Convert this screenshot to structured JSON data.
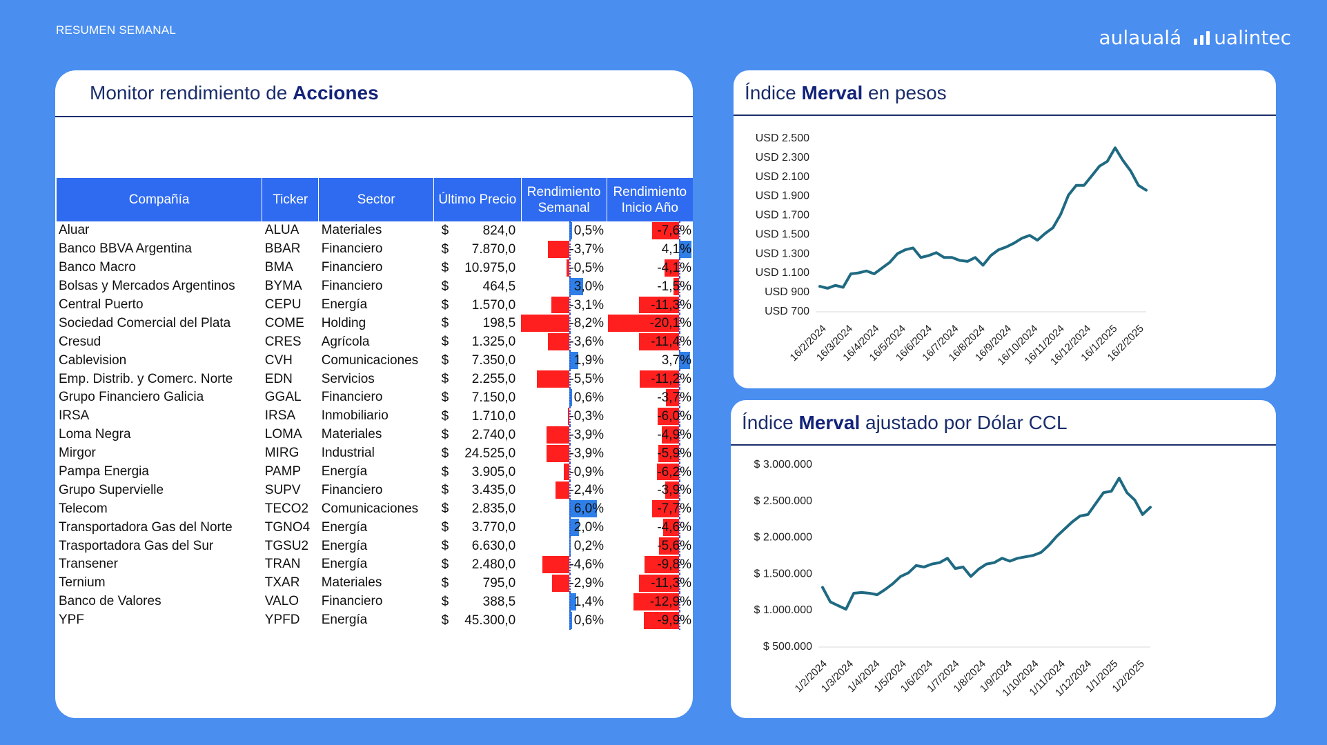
{
  "header": {
    "label": "RESUMEN SEMANAL",
    "brand_left": "aulaualá",
    "brand_right": "ualintec"
  },
  "colors": {
    "background": "#4a8ef0",
    "header_blue": "#2f6bf0",
    "negative": "#ff1f1f",
    "positive": "#2f7fe8",
    "line": "#1f6a82",
    "title": "#1a2d6b"
  },
  "monitor": {
    "title_prefix": "Monitor rendimiento de ",
    "title_bold": "Acciones",
    "columns": {
      "company": "Compañía",
      "ticker": "Ticker",
      "sector": "Sector",
      "price": "Último Precio",
      "weekly_1": "Rendimiento",
      "weekly_2": "Semanal",
      "ytd_1": "Rendimiento",
      "ytd_2": "Inicio Año"
    },
    "currency": "$",
    "rows": [
      {
        "company": "Aluar",
        "ticker": "ALUA",
        "sector": "Materiales",
        "price": "824,0",
        "weekly": 0.5,
        "weekly_label": "0,5%",
        "ytd": -7.6,
        "ytd_label": "-7,6%"
      },
      {
        "company": "Banco BBVA Argentina",
        "ticker": "BBAR",
        "sector": "Financiero",
        "price": "7.870,0",
        "weekly": -3.7,
        "weekly_label": "-3,7%",
        "ytd": 4.1,
        "ytd_label": "4,1%"
      },
      {
        "company": "Banco Macro",
        "ticker": "BMA",
        "sector": "Financiero",
        "price": "10.975,0",
        "weekly": -0.5,
        "weekly_label": "-0,5%",
        "ytd": -4.1,
        "ytd_label": "-4,1%"
      },
      {
        "company": "Bolsas y Mercados Argentinos",
        "ticker": "BYMA",
        "sector": "Financiero",
        "price": "464,5",
        "weekly": 3.0,
        "weekly_label": "3,0%",
        "ytd": -1.5,
        "ytd_label": "-1,5%"
      },
      {
        "company": "Central Puerto",
        "ticker": "CEPU",
        "sector": "Energía",
        "price": "1.570,0",
        "weekly": -3.1,
        "weekly_label": "-3,1%",
        "ytd": -11.3,
        "ytd_label": "-11,3%"
      },
      {
        "company": "Sociedad Comercial del Plata",
        "ticker": "COME",
        "sector": "Holding",
        "price": "198,5",
        "weekly": -8.2,
        "weekly_label": "-8,2%",
        "ytd": -20.1,
        "ytd_label": "-20,1%"
      },
      {
        "company": "Cresud",
        "ticker": "CRES",
        "sector": "Agrícola",
        "price": "1.325,0",
        "weekly": -3.6,
        "weekly_label": "-3,6%",
        "ytd": -11.4,
        "ytd_label": "-11,4%"
      },
      {
        "company": "Cablevision",
        "ticker": "CVH",
        "sector": "Comunicaciones",
        "price": "7.350,0",
        "weekly": 1.9,
        "weekly_label": "1,9%",
        "ytd": 3.7,
        "ytd_label": "3,7%"
      },
      {
        "company": "Emp. Distrib. y Comerc. Norte",
        "ticker": "EDN",
        "sector": "Servicios",
        "price": "2.255,0",
        "weekly": -5.5,
        "weekly_label": "-5,5%",
        "ytd": -11.2,
        "ytd_label": "-11,2%"
      },
      {
        "company": "Grupo Financiero Galicia",
        "ticker": "GGAL",
        "sector": "Financiero",
        "price": "7.150,0",
        "weekly": 0.6,
        "weekly_label": "0,6%",
        "ytd": -3.7,
        "ytd_label": "-3,7%"
      },
      {
        "company": "IRSA",
        "ticker": "IRSA",
        "sector": "Inmobiliario",
        "price": "1.710,0",
        "weekly": -0.3,
        "weekly_label": "-0,3%",
        "ytd": -6.0,
        "ytd_label": "-6,0%"
      },
      {
        "company": "Loma Negra",
        "ticker": "LOMA",
        "sector": "Materiales",
        "price": "2.740,0",
        "weekly": -3.9,
        "weekly_label": "-3,9%",
        "ytd": -4.9,
        "ytd_label": "-4,9%"
      },
      {
        "company": "Mirgor",
        "ticker": "MIRG",
        "sector": "Industrial",
        "price": "24.525,0",
        "weekly": -3.9,
        "weekly_label": "-3,9%",
        "ytd": -5.9,
        "ytd_label": "-5,9%"
      },
      {
        "company": "Pampa Energia",
        "ticker": "PAMP",
        "sector": "Energía",
        "price": "3.905,0",
        "weekly": -0.9,
        "weekly_label": "-0,9%",
        "ytd": -6.2,
        "ytd_label": "-6,2%"
      },
      {
        "company": "Grupo Supervielle",
        "ticker": "SUPV",
        "sector": "Financiero",
        "price": "3.435,0",
        "weekly": -2.4,
        "weekly_label": "-2,4%",
        "ytd": -3.9,
        "ytd_label": "-3,9%"
      },
      {
        "company": "Telecom",
        "ticker": "TECO2",
        "sector": "Comunicaciones",
        "price": "2.835,0",
        "weekly": 6.0,
        "weekly_label": "6,0%",
        "ytd": -7.7,
        "ytd_label": "-7,7%"
      },
      {
        "company": "Transportadora Gas del Norte",
        "ticker": "TGNO4",
        "sector": "Energía",
        "price": "3.770,0",
        "weekly": 2.0,
        "weekly_label": "2,0%",
        "ytd": -4.6,
        "ytd_label": "-4,6%"
      },
      {
        "company": "Trasportadora Gas del Sur",
        "ticker": "TGSU2",
        "sector": "Energía",
        "price": "6.630,0",
        "weekly": 0.2,
        "weekly_label": "0,2%",
        "ytd": -5.6,
        "ytd_label": "-5,6%"
      },
      {
        "company": "Transener",
        "ticker": "TRAN",
        "sector": "Energía",
        "price": "2.480,0",
        "weekly": -4.6,
        "weekly_label": "-4,6%",
        "ytd": -9.8,
        "ytd_label": "-9,8%"
      },
      {
        "company": "Ternium",
        "ticker": "TXAR",
        "sector": "Materiales",
        "price": "795,0",
        "weekly": -2.9,
        "weekly_label": "-2,9%",
        "ytd": -11.3,
        "ytd_label": "-11,3%"
      },
      {
        "company": "Banco de Valores",
        "ticker": "VALO",
        "sector": "Financiero",
        "price": "388,5",
        "weekly": 1.4,
        "weekly_label": "1,4%",
        "ytd": -12.9,
        "ytd_label": "-12,9%"
      },
      {
        "company": "YPF",
        "ticker": "YPFD",
        "sector": "Energía",
        "price": "45.300,0",
        "weekly": 0.6,
        "weekly_label": "0,6%",
        "ytd": -9.9,
        "ytd_label": "-9,9%"
      }
    ]
  },
  "merval_pesos": {
    "title_prefix": "Índice ",
    "title_bold": "Merval",
    "title_suffix": " en pesos"
  },
  "merval_ccl": {
    "title_prefix": "Índice ",
    "title_bold": "Merval",
    "title_suffix": " ajustado por Dólar CCL"
  },
  "chart_data": [
    {
      "id": "merval_pesos",
      "type": "line",
      "title": "Índice Merval en pesos",
      "ylim": [
        700,
        2500
      ],
      "yticks": [
        2500,
        2300,
        2100,
        1900,
        1700,
        1500,
        1300,
        1100,
        900,
        700
      ],
      "ytick_labels": [
        "USD 2.500",
        "USD 2.300",
        "USD 2.100",
        "USD 1.900",
        "USD 1.700",
        "USD 1.500",
        "USD 1.300",
        "USD 1.100",
        "USD 900",
        "USD 700"
      ],
      "xlabels": [
        "16/2/2024",
        "16/3/2024",
        "16/4/2024",
        "16/5/2024",
        "16/6/2024",
        "16/7/2024",
        "16/8/2024",
        "16/9/2024",
        "16/10/2024",
        "16/11/2024",
        "16/12/2024",
        "16/1/2025",
        "16/2/2025"
      ],
      "x": [
        0,
        0.3,
        0.6,
        0.9,
        1.2,
        1.5,
        1.8,
        2.1,
        2.4,
        2.7,
        3.0,
        3.3,
        3.6,
        3.9,
        4.2,
        4.5,
        4.8,
        5.1,
        5.4,
        5.7,
        6.0,
        6.3,
        6.6,
        6.9,
        7.2,
        7.5,
        7.8,
        8.1,
        8.4,
        8.7,
        9.0,
        9.3,
        9.6,
        9.9,
        10.2,
        10.5,
        10.8,
        11.1,
        11.4,
        11.7,
        12.0,
        12.3,
        12.6
      ],
      "values": [
        950,
        930,
        960,
        940,
        1080,
        1090,
        1110,
        1080,
        1140,
        1200,
        1290,
        1330,
        1350,
        1250,
        1270,
        1300,
        1250,
        1250,
        1220,
        1210,
        1250,
        1170,
        1270,
        1330,
        1360,
        1400,
        1450,
        1480,
        1430,
        1500,
        1560,
        1700,
        1900,
        2000,
        2000,
        2100,
        2200,
        2250,
        2390,
        2260,
        2150,
        2000,
        1950
      ]
    },
    {
      "id": "merval_ccl",
      "type": "line",
      "title": "Índice Merval ajustado por Dólar CCL",
      "ylim": [
        500000,
        3000000
      ],
      "yticks": [
        3000000,
        2500000,
        2000000,
        1500000,
        1000000,
        500000
      ],
      "ytick_labels": [
        "$ 3.000.000",
        "$ 2.500.000",
        "$ 2.000.000",
        "$ 1.500.000",
        "$ 1.000.000",
        "$ 500.000"
      ],
      "xlabels": [
        "1/2/2024",
        "1/3/2024",
        "1/4/2024",
        "1/5/2024",
        "1/6/2024",
        "1/7/2024",
        "1/8/2024",
        "1/9/2024",
        "1/10/2024",
        "1/11/2024",
        "1/12/2024",
        "1/1/2025",
        "1/2/2025"
      ],
      "x": [
        0,
        0.3,
        0.6,
        0.9,
        1.2,
        1.5,
        1.8,
        2.1,
        2.4,
        2.7,
        3.0,
        3.3,
        3.6,
        3.9,
        4.2,
        4.5,
        4.8,
        5.1,
        5.4,
        5.7,
        6.0,
        6.3,
        6.6,
        6.9,
        7.2,
        7.5,
        7.8,
        8.1,
        8.4,
        8.7,
        9.0,
        9.3,
        9.6,
        9.9,
        10.2,
        10.5,
        10.8,
        11.1,
        11.4,
        11.7,
        12.0,
        12.3,
        12.6
      ],
      "values": [
        1300000,
        1100000,
        1050000,
        1000000,
        1220000,
        1230000,
        1220000,
        1200000,
        1270000,
        1350000,
        1450000,
        1500000,
        1600000,
        1580000,
        1620000,
        1640000,
        1700000,
        1560000,
        1580000,
        1450000,
        1550000,
        1620000,
        1640000,
        1700000,
        1660000,
        1700000,
        1720000,
        1740000,
        1780000,
        1880000,
        2000000,
        2100000,
        2200000,
        2280000,
        2300000,
        2450000,
        2600000,
        2620000,
        2800000,
        2600000,
        2500000,
        2300000,
        2400000
      ]
    }
  ]
}
